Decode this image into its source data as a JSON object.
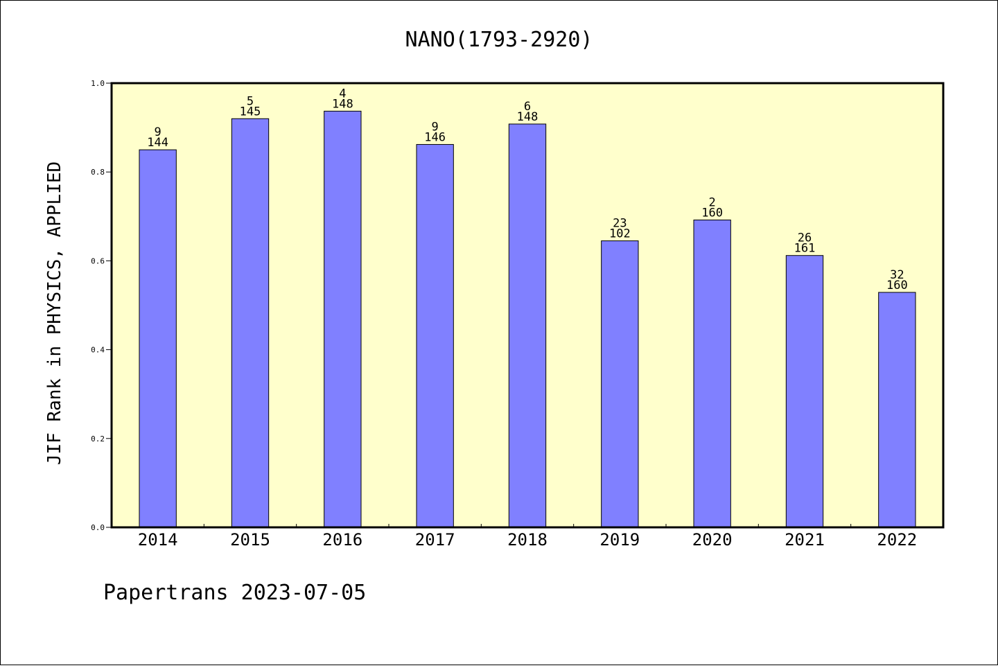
{
  "chart_data": {
    "type": "bar",
    "title": "NANO(1793-2920)",
    "ylabel": "JIF Rank in PHYSICS, APPLIED",
    "xlabel": "",
    "categories": [
      "2014",
      "2015",
      "2016",
      "2017",
      "2018",
      "2019",
      "2020",
      "2021",
      "2022"
    ],
    "values": [
      0.85,
      0.92,
      0.937,
      0.862,
      0.908,
      0.645,
      0.692,
      0.612,
      0.529
    ],
    "rank_labels": [
      "9",
      "5",
      "4",
      "9",
      "6",
      "23",
      "2",
      "26",
      "32"
    ],
    "total_labels": [
      "144",
      "145",
      "148",
      "146",
      "148",
      "102",
      "160",
      "161",
      "160"
    ],
    "ylim": [
      0,
      1.0
    ],
    "yticks": [
      "0.0",
      "0.2",
      "0.4",
      "0.6",
      "0.8",
      "1.0"
    ],
    "grid": false,
    "colors": {
      "bar": "#8080ff",
      "plot_background": "#ffffcc",
      "axis": "#000000"
    }
  },
  "footer": "Papertrans 2023-07-05"
}
